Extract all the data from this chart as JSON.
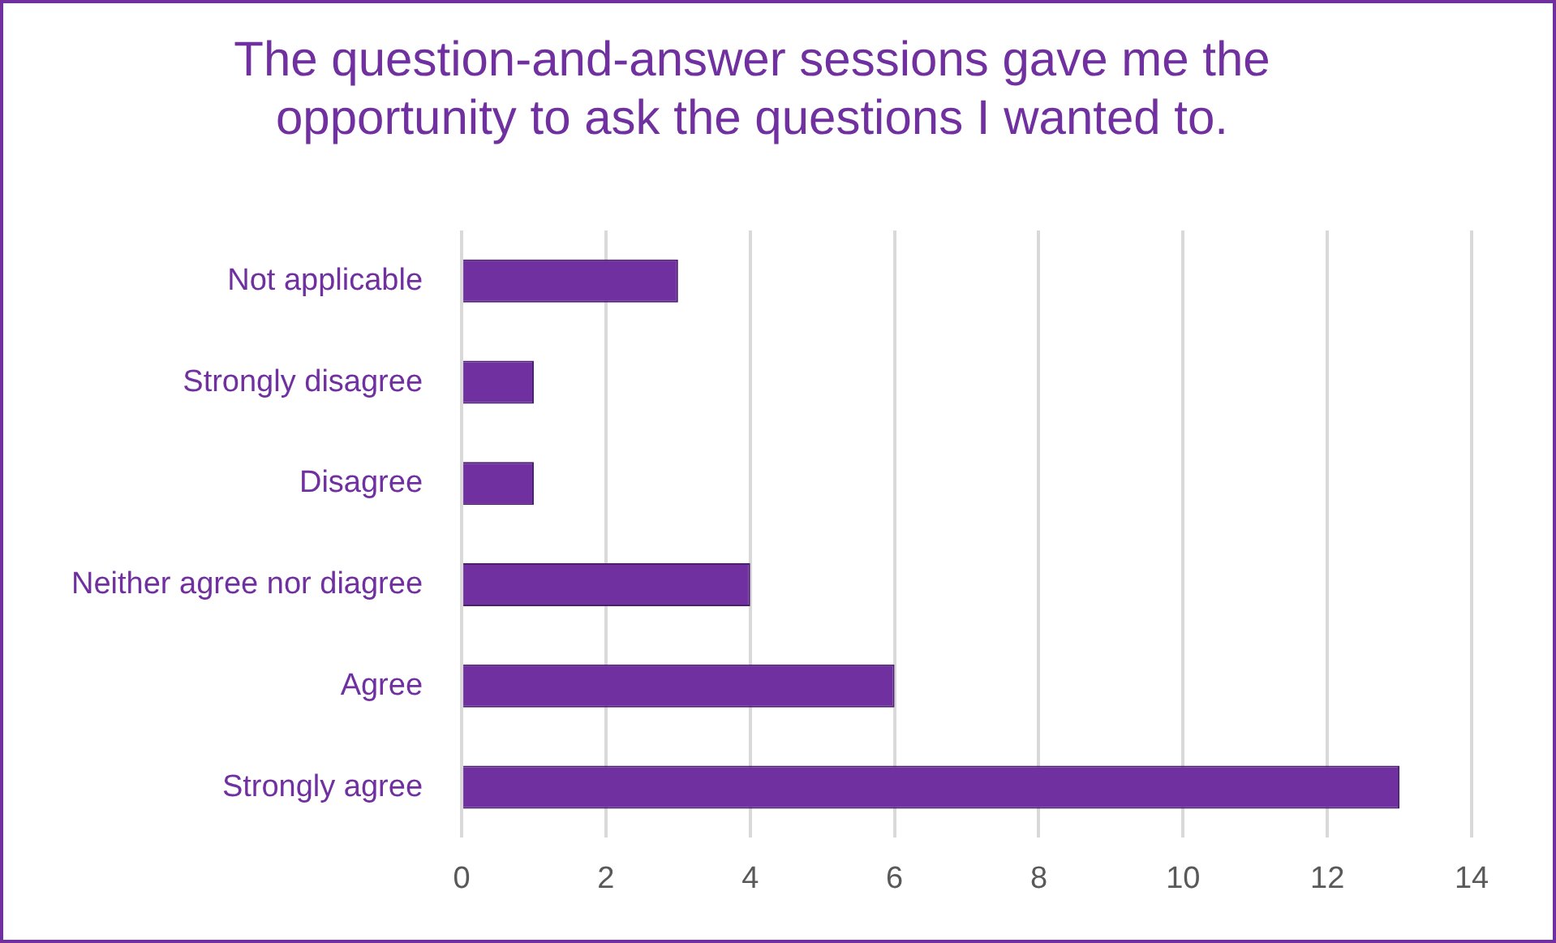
{
  "chart_data": {
    "type": "bar",
    "orientation": "horizontal",
    "title": "The question-and-answer sessions gave me the opportunity to ask the questions I wanted to.",
    "categories": [
      "Not applicable",
      "Strongly disagree",
      "Disagree",
      "Neither agree nor diagree",
      "Agree",
      "Strongly agree"
    ],
    "values": [
      3,
      1,
      1,
      4,
      6,
      13
    ],
    "color": "#7030a0",
    "xlim": [
      0,
      14
    ],
    "xticks": [
      0,
      2,
      4,
      6,
      8,
      10,
      12,
      14
    ],
    "grid": "x",
    "legend": false
  }
}
